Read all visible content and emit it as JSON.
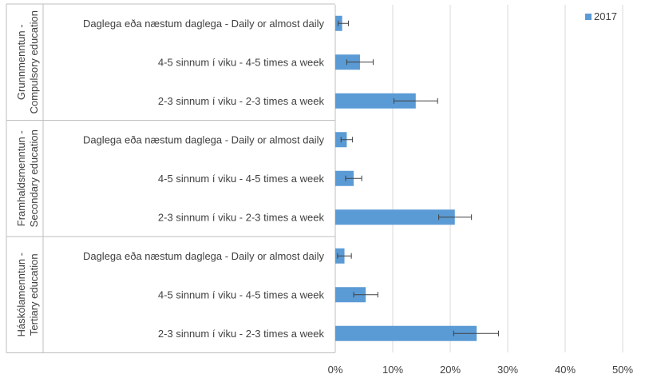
{
  "chart_data": {
    "type": "bar",
    "orientation": "horizontal",
    "xlim": [
      0,
      50
    ],
    "x_ticks": [
      "0%",
      "10%",
      "20%",
      "30%",
      "40%",
      "50%"
    ],
    "grid": "vertical",
    "legend_position": "top-right",
    "series": [
      {
        "name": "2017",
        "color": "#5b9bd5"
      }
    ],
    "groups": [
      {
        "label_line1": "Grunnmenntun -",
        "label_line2": "Compulsory education",
        "categories": [
          {
            "label": "Daglega eða næstum daglega - Daily or almost daily",
            "value": 1.2,
            "err_low": 0.5,
            "err_high": 2.3
          },
          {
            "label": "4-5 sinnum í viku - 4-5 times a week",
            "value": 4.3,
            "err_low": 2.0,
            "err_high": 6.6
          },
          {
            "label": "2-3 sinnum í viku - 2-3 times a week",
            "value": 14.0,
            "err_low": 10.2,
            "err_high": 17.8
          }
        ]
      },
      {
        "label_line1": "Framhaldsmenntun -",
        "label_line2": "Secondary education",
        "categories": [
          {
            "label": "Daglega eða næstum daglega - Daily or almost daily",
            "value": 2.0,
            "err_low": 1.0,
            "err_high": 3.0
          },
          {
            "label": "4-5 sinnum í viku - 4-5 times a week",
            "value": 3.2,
            "err_low": 1.8,
            "err_high": 4.6
          },
          {
            "label": "2-3 sinnum í viku - 2-3 times a week",
            "value": 20.8,
            "err_low": 18.0,
            "err_high": 23.7
          }
        ]
      },
      {
        "label_line1": "Háskólamenntun -",
        "label_line2": "Tertiary education",
        "categories": [
          {
            "label": "Daglega eða næstum daglega - Daily or almost daily",
            "value": 1.6,
            "err_low": 0.4,
            "err_high": 2.8
          },
          {
            "label": "4-5 sinnum í viku - 4-5 times a week",
            "value": 5.3,
            "err_low": 3.2,
            "err_high": 7.4
          },
          {
            "label": "2-3 sinnum í viku - 2-3 times a week",
            "value": 24.6,
            "err_low": 20.6,
            "err_high": 28.4
          }
        ]
      }
    ]
  }
}
